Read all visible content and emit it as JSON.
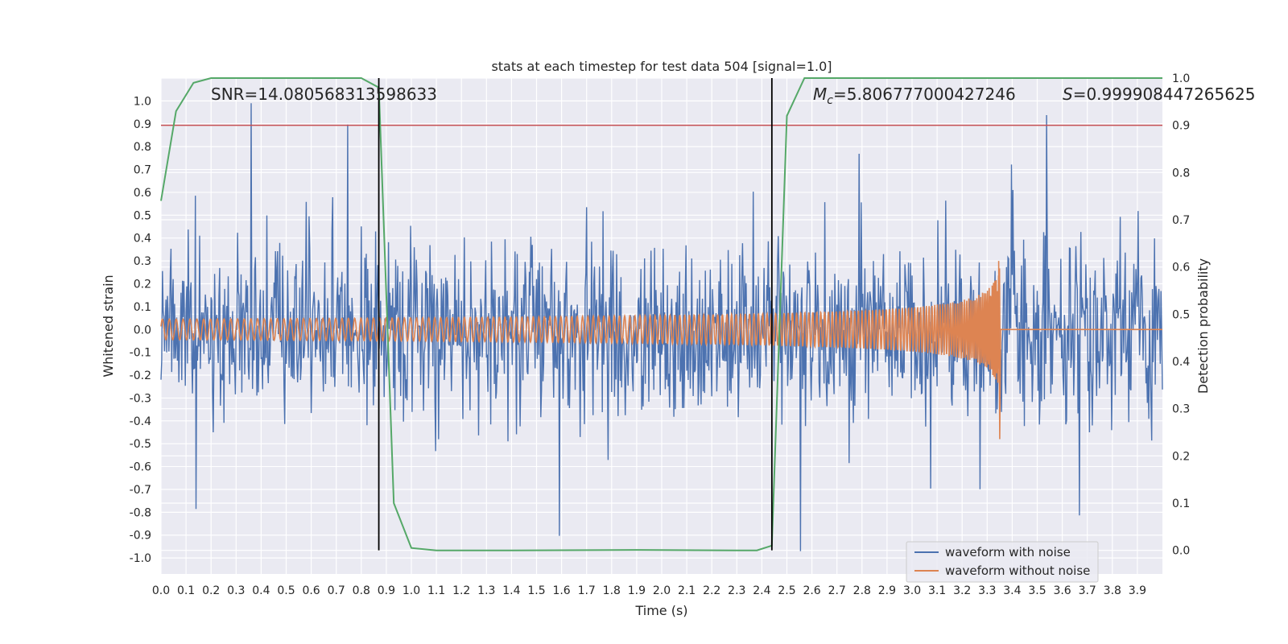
{
  "chart_data": {
    "type": "line",
    "title": "stats at each timestep for test data 504 [signal=1.0]",
    "xlabel": "Time (s)",
    "ylabel_left": "Whitened strain",
    "ylabel_right": "Detection probability",
    "xlim": [
      0.0,
      4.0
    ],
    "ylim_left": [
      -1.07,
      1.1
    ],
    "ylim_right": [
      -0.05,
      1.0
    ],
    "grid": true,
    "legend_position": "lower-right",
    "xticks": [
      "0.0",
      "0.1",
      "0.2",
      "0.3",
      "0.4",
      "0.5",
      "0.6",
      "0.7",
      "0.8",
      "0.9",
      "1.0",
      "1.1",
      "1.2",
      "1.3",
      "1.4",
      "1.5",
      "1.6",
      "1.7",
      "1.8",
      "1.9",
      "2.0",
      "2.1",
      "2.2",
      "2.3",
      "2.4",
      "2.5",
      "2.6",
      "2.7",
      "2.8",
      "2.9",
      "3.0",
      "3.1",
      "3.2",
      "3.3",
      "3.4",
      "3.5",
      "3.6",
      "3.7",
      "3.8",
      "3.9"
    ],
    "yticks_left": [
      "1.0",
      "0.9",
      "0.8",
      "0.7",
      "0.6",
      "0.5",
      "0.4",
      "0.3",
      "0.2",
      "0.1",
      "0.0",
      "-0.1",
      "-0.2",
      "-0.3",
      "-0.4",
      "-0.5",
      "-0.6",
      "-0.7",
      "-0.8",
      "-0.9",
      "-1.0"
    ],
    "yticks_right": [
      "1.0",
      "0.9",
      "0.8",
      "0.7",
      "0.6",
      "0.5",
      "0.4",
      "0.3",
      "0.2",
      "0.1",
      "0.0"
    ],
    "annotations": {
      "snr": "SNR=14.080568313598633",
      "mc_symbol": "M",
      "mc_sub": "c",
      "mc_value": "=5.806777000427246",
      "s_symbol": "S",
      "s_value": "=0.999908447265625"
    },
    "threshold": {
      "y_right": 0.9,
      "color": "#c44e52"
    },
    "vertical_markers": [
      0.87,
      2.44
    ],
    "series": [
      {
        "name": "waveform with noise",
        "color": "#4c72b0",
        "axis": "left",
        "amplitude_typical": 0.45,
        "amplitude_peak": 1.0
      },
      {
        "name": "waveform without noise",
        "color": "#dd8452",
        "axis": "left",
        "chirp_end_time": 3.35,
        "start_amplitude": 0.045,
        "peak_amplitude": 0.3,
        "min_amplitude": -0.48
      },
      {
        "name": "Detection probability",
        "color": "#55a868",
        "axis": "right",
        "x": [
          0.0,
          0.06,
          0.13,
          0.2,
          0.3,
          0.5,
          0.7,
          0.8,
          0.87,
          0.93,
          1.0,
          1.1,
          1.4,
          1.9,
          2.3,
          2.38,
          2.44,
          2.5,
          2.57,
          2.7,
          3.0,
          3.5,
          4.0
        ],
        "y": [
          0.74,
          0.93,
          0.99,
          1.0,
          1.0,
          1.0,
          1.0,
          1.0,
          0.98,
          0.1,
          0.005,
          0.0,
          0.0,
          0.001,
          0.0,
          0.0,
          0.01,
          0.92,
          1.0,
          1.0,
          1.0,
          1.0,
          1.0
        ]
      }
    ]
  }
}
